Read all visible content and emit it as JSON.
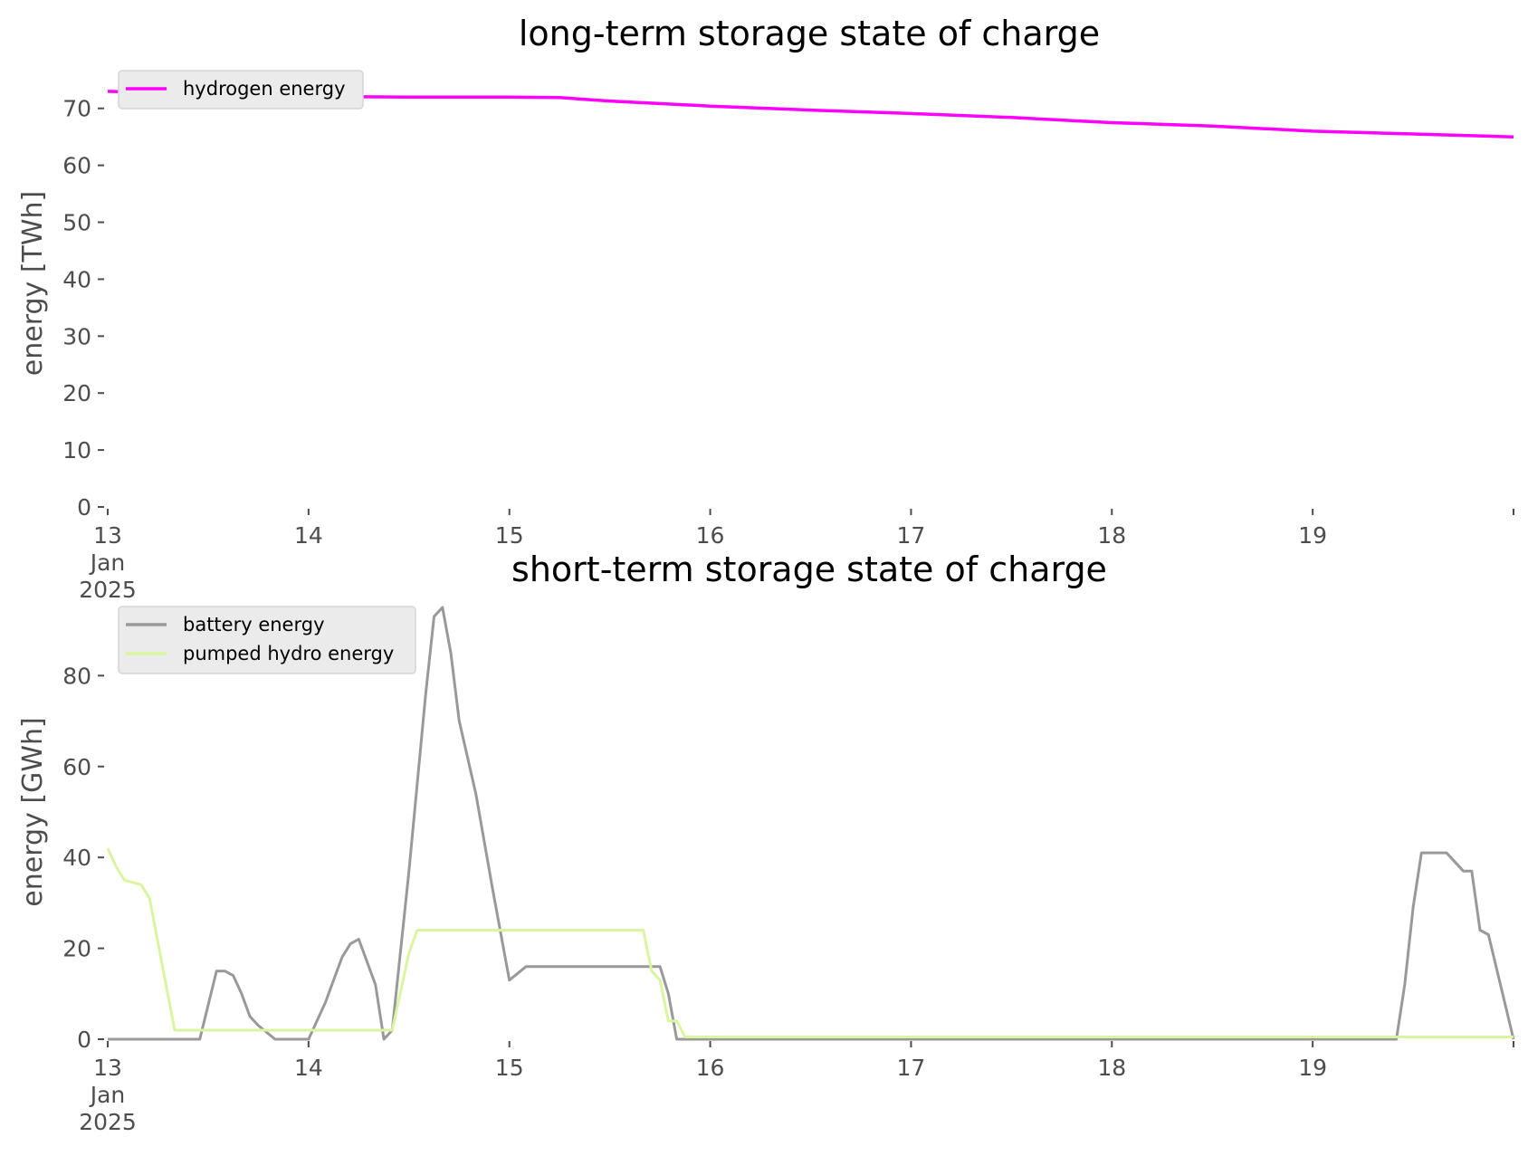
{
  "chart_data": [
    {
      "type": "line",
      "title": "long-term storage state of charge",
      "ylabel": "energy [TWh]",
      "xlim": [
        "2025-01-13",
        "2025-01-20"
      ],
      "ylim": [
        0,
        76
      ],
      "yticks": [
        0,
        10,
        20,
        30,
        40,
        50,
        60,
        70
      ],
      "xtick_labels": [
        {
          "day": "13",
          "month": "Jan",
          "year": "2025"
        },
        {
          "day": "14"
        },
        {
          "day": "15"
        },
        {
          "day": "16"
        },
        {
          "day": "17"
        },
        {
          "day": "18"
        },
        {
          "day": "19"
        },
        {
          "day": ""
        }
      ],
      "legend_placement": "upper-left",
      "grid": false,
      "series": [
        {
          "name": "hydrogen energy",
          "color": "#ff00ff",
          "x": [
            "2025-01-13 00:00",
            "2025-01-13 12:00",
            "2025-01-14 00:00",
            "2025-01-14 12:00",
            "2025-01-15 00:00",
            "2025-01-15 06:00",
            "2025-01-15 12:00",
            "2025-01-16 00:00",
            "2025-01-16 12:00",
            "2025-01-17 00:00",
            "2025-01-17 12:00",
            "2025-01-18 00:00",
            "2025-01-18 12:00",
            "2025-01-19 00:00",
            "2025-01-19 12:00",
            "2025-01-20 00:00"
          ],
          "y": [
            73.0,
            72.5,
            72.1,
            72.0,
            72.0,
            71.9,
            71.3,
            70.4,
            69.7,
            69.1,
            68.4,
            67.5,
            66.9,
            66.0,
            65.5,
            65.0
          ]
        }
      ]
    },
    {
      "type": "line",
      "title": "short-term storage state of charge",
      "ylabel": "energy [GWh]",
      "xlim": [
        "2025-01-13",
        "2025-01-20"
      ],
      "ylim": [
        0,
        96
      ],
      "yticks": [
        0,
        20,
        40,
        60,
        80
      ],
      "xtick_labels": [
        {
          "day": "13",
          "month": "Jan",
          "year": "2025"
        },
        {
          "day": "14"
        },
        {
          "day": "15"
        },
        {
          "day": "16"
        },
        {
          "day": "17"
        },
        {
          "day": "18"
        },
        {
          "day": "19"
        },
        {
          "day": ""
        }
      ],
      "legend_placement": "upper-left",
      "grid": false,
      "series": [
        {
          "name": "battery energy",
          "color": "#999999",
          "x": [
            "2025-01-13 00:00",
            "2025-01-13 11:00",
            "2025-01-13 13:00",
            "2025-01-13 14:00",
            "2025-01-13 15:00",
            "2025-01-13 16:00",
            "2025-01-13 17:00",
            "2025-01-13 18:00",
            "2025-01-13 20:00",
            "2025-01-13 22:00",
            "2025-01-14 00:00",
            "2025-01-14 02:00",
            "2025-01-14 04:00",
            "2025-01-14 05:00",
            "2025-01-14 06:00",
            "2025-01-14 08:00",
            "2025-01-14 09:00",
            "2025-01-14 10:00",
            "2025-01-14 12:00",
            "2025-01-14 14:00",
            "2025-01-14 15:00",
            "2025-01-14 16:00",
            "2025-01-14 17:00",
            "2025-01-14 18:00",
            "2025-01-14 20:00",
            "2025-01-14 22:00",
            "2025-01-15 00:00",
            "2025-01-15 02:00",
            "2025-01-15 04:00",
            "2025-01-15 12:00",
            "2025-01-15 16:00",
            "2025-01-15 18:00",
            "2025-01-15 19:00",
            "2025-01-15 20:00",
            "2025-01-16 00:00",
            "2025-01-19 10:00",
            "2025-01-19 11:00",
            "2025-01-19 12:00",
            "2025-01-19 13:00",
            "2025-01-19 15:00",
            "2025-01-19 16:00",
            "2025-01-19 17:00",
            "2025-01-19 18:00",
            "2025-01-19 19:00",
            "2025-01-19 20:00",
            "2025-01-19 21:00",
            "2025-01-20 00:00"
          ],
          "y": [
            0,
            0,
            15,
            15,
            14,
            10,
            5,
            3,
            0,
            0,
            0,
            8,
            18,
            21,
            22,
            12,
            0,
            2,
            37,
            76,
            93,
            95,
            85,
            70,
            54,
            33,
            13,
            16,
            16,
            16,
            16,
            16,
            10,
            0,
            0,
            0,
            12,
            29,
            41,
            41,
            41,
            39,
            37,
            37,
            24,
            23,
            0
          ]
        },
        {
          "name": "pumped hydro energy",
          "color": "#d9f5a0",
          "x": [
            "2025-01-13 00:00",
            "2025-01-13 01:00",
            "2025-01-13 02:00",
            "2025-01-13 04:00",
            "2025-01-13 05:00",
            "2025-01-13 08:00",
            "2025-01-14 00:00",
            "2025-01-14 10:00",
            "2025-01-14 12:00",
            "2025-01-14 13:00",
            "2025-01-15 00:00",
            "2025-01-15 16:00",
            "2025-01-15 17:00",
            "2025-01-15 18:00",
            "2025-01-15 19:00",
            "2025-01-15 20:00",
            "2025-01-15 21:00",
            "2025-01-16 00:00",
            "2025-01-20 00:00"
          ],
          "y": [
            42,
            38,
            35,
            34,
            31,
            2,
            2,
            2,
            19,
            24,
            24,
            24,
            15,
            13,
            4,
            4,
            0.5,
            0.5,
            0.5
          ]
        }
      ]
    }
  ]
}
